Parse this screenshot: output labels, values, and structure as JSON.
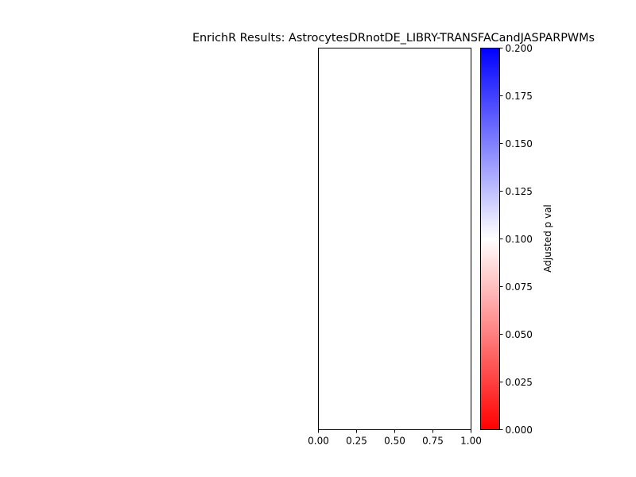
{
  "chart_data": {
    "type": "bar",
    "title": "EnrichR Results: AstrocytesDRnotDE_LIBRY-TRANSFACandJASPARPWMs",
    "xlabel": "",
    "ylabel": "",
    "xlim": [
      0,
      1
    ],
    "x_ticks": [
      "0.00",
      "0.25",
      "0.50",
      "0.75",
      "1.00"
    ],
    "categories": [],
    "values": [],
    "grid": false,
    "colorbar": {
      "label": "Adjusted p val",
      "range": [
        0,
        0.2
      ],
      "colors": {
        "low": "#ff0000",
        "mid": "#ffffff",
        "high": "#0000ff"
      },
      "ticks": [
        "0.000",
        "0.025",
        "0.050",
        "0.075",
        "0.100",
        "0.125",
        "0.150",
        "0.175",
        "0.200"
      ]
    }
  }
}
